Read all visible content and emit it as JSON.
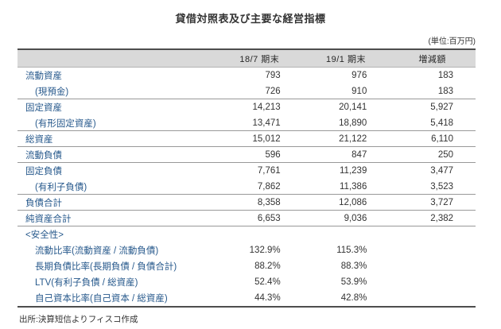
{
  "title": "貸借対照表及び主要な経営指標",
  "unit_note": "(単位:百万円)",
  "source": "出所:決算短信よりフィスコ作成",
  "table": {
    "columns": [
      "18/7 期末",
      "19/1 期末",
      "増減額"
    ],
    "rows": [
      {
        "label": "流動資産",
        "indent": 0,
        "section": false,
        "divider": false,
        "values": [
          "793",
          "976",
          "183"
        ]
      },
      {
        "label": "(現預金)",
        "indent": 1,
        "section": false,
        "divider": true,
        "values": [
          "726",
          "910",
          "183"
        ]
      },
      {
        "label": "固定資産",
        "indent": 0,
        "section": false,
        "divider": false,
        "values": [
          "14,213",
          "20,141",
          "5,927"
        ]
      },
      {
        "label": "(有形固定資産)",
        "indent": 1,
        "section": false,
        "divider": true,
        "values": [
          "13,471",
          "18,890",
          "5,418"
        ]
      },
      {
        "label": "総資産",
        "indent": 0,
        "section": false,
        "divider": true,
        "values": [
          "15,012",
          "21,122",
          "6,110"
        ]
      },
      {
        "label": "流動負債",
        "indent": 0,
        "section": false,
        "divider": true,
        "values": [
          "596",
          "847",
          "250"
        ]
      },
      {
        "label": "固定負債",
        "indent": 0,
        "section": false,
        "divider": false,
        "values": [
          "7,761",
          "11,239",
          "3,477"
        ]
      },
      {
        "label": "(有利子負債)",
        "indent": 1,
        "section": false,
        "divider": true,
        "values": [
          "7,862",
          "11,386",
          "3,523"
        ]
      },
      {
        "label": "負債合計",
        "indent": 0,
        "section": false,
        "divider": true,
        "values": [
          "8,358",
          "12,086",
          "3,727"
        ]
      },
      {
        "label": "純資産合計",
        "indent": 0,
        "section": false,
        "divider": true,
        "values": [
          "6,653",
          "9,036",
          "2,382"
        ]
      },
      {
        "label": "<安全性>",
        "indent": 0,
        "section": true,
        "divider": false,
        "values": [
          "",
          "",
          ""
        ]
      },
      {
        "label": "流動比率(流動資産 / 流動負債)",
        "indent": 1,
        "section": false,
        "divider": false,
        "values": [
          "132.9%",
          "115.3%",
          ""
        ]
      },
      {
        "label": "長期負債比率(長期負債 / 負債合計)",
        "indent": 1,
        "section": false,
        "divider": false,
        "values": [
          "88.2%",
          "88.3%",
          ""
        ]
      },
      {
        "label": "LTV(有利子負債 / 総資産)",
        "indent": 1,
        "section": false,
        "divider": false,
        "values": [
          "52.4%",
          "53.9%",
          ""
        ]
      },
      {
        "label": "自己資本比率(自己資本 / 総資産)",
        "indent": 1,
        "section": false,
        "divider": false,
        "values": [
          "44.3%",
          "42.8%",
          ""
        ]
      }
    ]
  },
  "colors": {
    "label_blue": "#27598C",
    "text_dark": "#333333",
    "header_bg": "#D9D9D9",
    "border_dark": "#4D4D4D",
    "border_light": "#999999"
  }
}
